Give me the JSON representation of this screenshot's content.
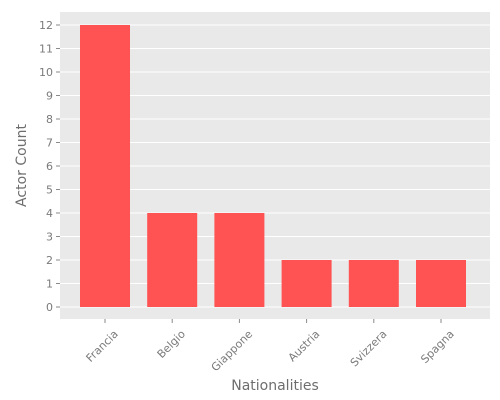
{
  "chart_data": {
    "type": "bar",
    "title": "",
    "xlabel": "Nationalities",
    "ylabel": "Actor Count",
    "categories": [
      "Francia",
      "Belgio",
      "Giappone",
      "Austria",
      "Svizzera",
      "Spagna"
    ],
    "values": [
      12,
      4,
      4,
      2,
      2,
      2
    ],
    "ylim": [
      0,
      12.5
    ],
    "yticks": [
      0,
      1,
      2,
      3,
      4,
      5,
      6,
      7,
      8,
      9,
      10,
      11,
      12
    ],
    "grid": true,
    "colors": {
      "bar": "#ff5252",
      "plot_background": "#e9e9e9",
      "grid": "#ffffff",
      "text": "#7a7a7a"
    }
  }
}
